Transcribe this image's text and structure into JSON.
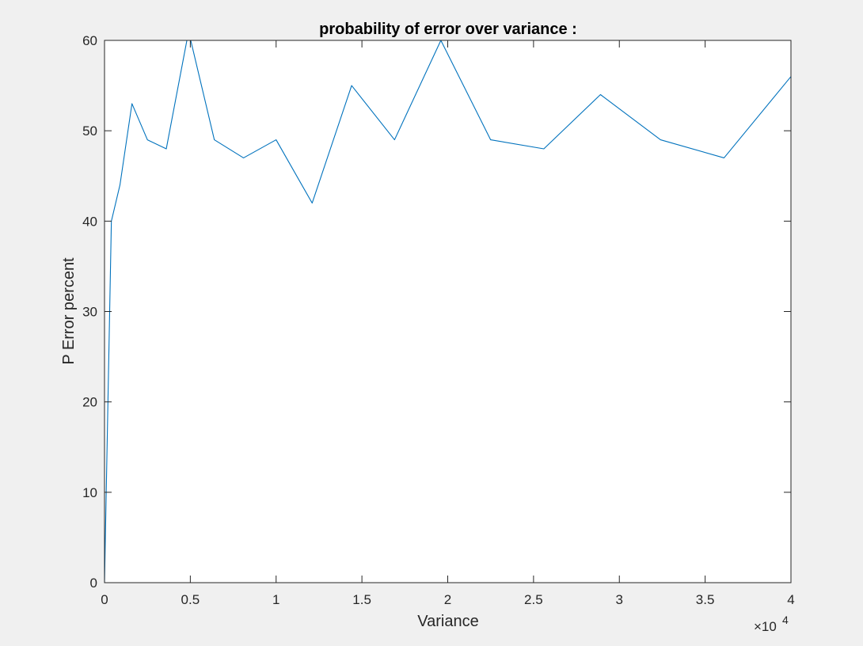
{
  "figure": {
    "background": "#f0f0f0",
    "axes_background": "#ffffff",
    "axis_color": "#262626"
  },
  "chart_data": {
    "type": "line",
    "title": "probability of error over variance :",
    "xlabel": "Variance",
    "ylabel": "P Error percent",
    "x_exponent_label": "×10",
    "x_exponent_power": "4",
    "xlim": [
      0,
      40000
    ],
    "ylim": [
      0,
      60
    ],
    "xticks": [
      0,
      5000,
      10000,
      15000,
      20000,
      25000,
      30000,
      35000,
      40000
    ],
    "xtick_labels": [
      "0",
      "0.5",
      "1",
      "1.5",
      "2",
      "2.5",
      "3",
      "3.5",
      "4"
    ],
    "yticks": [
      0,
      10,
      20,
      30,
      40,
      50,
      60
    ],
    "ytick_labels": [
      "0",
      "10",
      "20",
      "30",
      "40",
      "50",
      "60"
    ],
    "grid": false,
    "box": true,
    "series": [
      {
        "color": "#0072bd",
        "x": [
          0,
          400,
          900,
          1600,
          2500,
          3600,
          4900,
          6400,
          8100,
          10000,
          12100,
          14400,
          16900,
          19600,
          22500,
          25600,
          28900,
          32400,
          36100,
          40000
        ],
        "y": [
          0,
          40,
          44,
          53,
          49,
          48,
          61,
          49,
          47,
          49,
          42,
          55,
          49,
          60,
          49,
          48,
          54,
          49,
          47,
          56
        ]
      }
    ]
  }
}
